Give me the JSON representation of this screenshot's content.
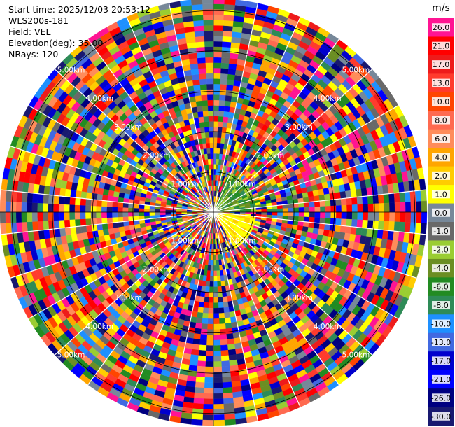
{
  "header": {
    "start_time": "Start time: 2025/12/03 20:53:12",
    "site": "WLS200s-181",
    "field": "Field: VEL",
    "elevation": "Elevation(deg): 35.00",
    "nrays": "NRays: 120"
  },
  "chart_data": {
    "type": "heatmap",
    "projection": "polar PPI",
    "field": "VEL",
    "n_rays": 120,
    "n_range_gates": 40,
    "range_unit": "km",
    "range_max_km": 5.3,
    "range_rings_km": [
      1,
      2,
      3,
      4,
      5
    ],
    "range_ring_labels": [
      "1.00km",
      "2.00km",
      "3.00km",
      "4.00km",
      "5.00km"
    ],
    "colorbar": {
      "unit": "m/s",
      "tick_labels": [
        "26.0",
        "21.0",
        "17.0",
        "13.0",
        "10.0",
        "8.0",
        "6.0",
        "4.0",
        "2.0",
        "1.0",
        "0.0",
        "-1.0",
        "-2.0",
        "-4.0",
        "-6.0",
        "-8.0",
        "-10.0",
        "-13.0",
        "-17.0",
        "-21.0",
        "-26.0",
        "-30.0"
      ],
      "colors": [
        "#ff1493",
        "#ff0000",
        "#ee1b1b",
        "#ff3b2d",
        "#ff4500",
        "#ff6a50",
        "#ff8c5a",
        "#ffa500",
        "#ffcc00",
        "#ffff00",
        "#778899",
        "#696969",
        "#9acd32",
        "#6b8e23",
        "#228b22",
        "#2e8b57",
        "#1e90ff",
        "#4169e1",
        "#0000cd",
        "#0000ff",
        "#000080",
        "#191970"
      ]
    },
    "inner_pattern": {
      "positive_sector_deg": [
        95,
        150
      ],
      "negative_sector_deg": [
        20,
        90
      ],
      "core_radius_km": 1.0
    }
  }
}
